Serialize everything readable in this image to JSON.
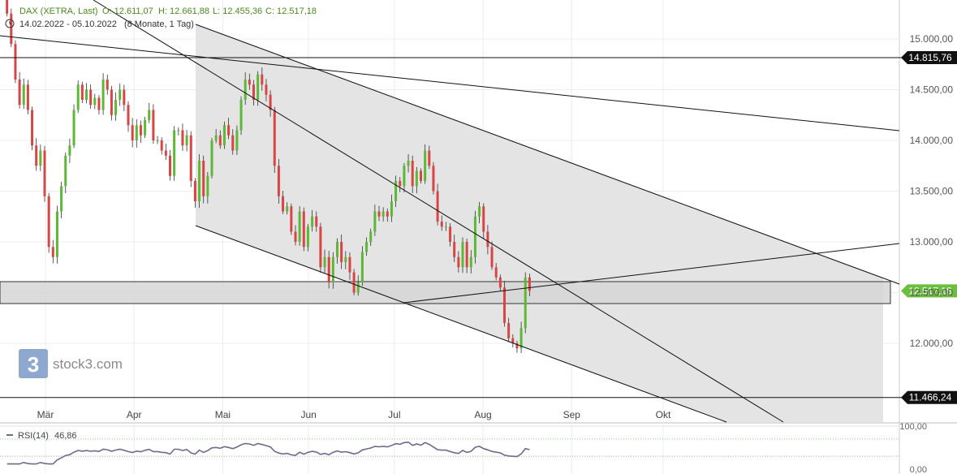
{
  "header": {
    "instrument": "DAX (XETRA, Last)",
    "open": "O: 12.611,07",
    "high": "H: 12.661,88",
    "low": "L: 12.455,36",
    "close": "C: 12.517,18",
    "range": "14.02.2022 - 05.10.2022",
    "period": "(8 Monate, 1 Tag)"
  },
  "brand": {
    "name": "stock3.com",
    "logo_glyph": "3"
  },
  "colors": {
    "up": "#5cb836",
    "down": "#d94545",
    "rsi_line": "#6f6a8c",
    "accent_price": "#6abf3c"
  },
  "chart_data": {
    "type": "candlestick",
    "y_axis": {
      "ticks": [
        12000,
        12500,
        13000,
        13500,
        14000,
        14500,
        15000
      ],
      "tick_labels": [
        "12.000,00",
        "12.500,00",
        "13.000,00",
        "13.500,00",
        "14.000,00",
        "14.500,00",
        "15.000,00"
      ],
      "range": [
        11400,
        15400
      ]
    },
    "x_axis": {
      "months": [
        "Mär",
        "Apr",
        "Mai",
        "Jun",
        "Jul",
        "Aug",
        "Sep",
        "Okt"
      ],
      "month_dates": [
        "2022-03-01",
        "2022-04-01",
        "2022-05-02",
        "2022-06-01",
        "2022-07-01",
        "2022-08-01",
        "2022-09-01",
        "2022-10-03"
      ]
    },
    "levels": [
      {
        "value": 14815.76,
        "label": "14.815,76"
      },
      {
        "value": 11466.24,
        "label": "11.466,24"
      }
    ],
    "last_price": {
      "value": 12517.18,
      "label": "12.517,18"
    },
    "closes": [
      15450,
      15250,
      14950,
      14600,
      14350,
      14550,
      14300,
      13950,
      13750,
      13900,
      13450,
      12950,
      12850,
      13300,
      13550,
      13850,
      13950,
      14300,
      14550,
      14400,
      14500,
      14350,
      14420,
      14300,
      14600,
      14500,
      14250,
      14400,
      14500,
      14350,
      14150,
      14000,
      14150,
      14050,
      14200,
      14300,
      14000,
      14000,
      13900,
      13850,
      13650,
      14100,
      14100,
      13950,
      14050,
      13600,
      13400,
      13800,
      13450,
      13650,
      14000,
      14050,
      13950,
      14150,
      14050,
      13900,
      14100,
      14400,
      14600,
      14550,
      14400,
      14650,
      14550,
      14450,
      14300,
      13750,
      13450,
      13300,
      13350,
      13100,
      13000,
      13300,
      12950,
      13150,
      13250,
      13150,
      12750,
      12850,
      12600,
      12850,
      13000,
      12800,
      12850,
      12700,
      12500,
      12600,
      12900,
      13000,
      13100,
      13300,
      13250,
      13300,
      13250,
      13400,
      13600,
      13550,
      13750,
      13800,
      13550,
      13700,
      13600,
      13900,
      13750,
      13500,
      13200,
      13150,
      13150,
      13000,
      12850,
      12750,
      13000,
      12750,
      12850,
      13250,
      13350,
      13100,
      12950,
      12750,
      12650,
      12550,
      12200,
      12050,
      12000,
      11950,
      12150,
      12650,
      12517
    ],
    "rsi": {
      "label": "RSI(14)",
      "value": "46,86",
      "period": 14,
      "overbought": 70,
      "oversold": 30,
      "tick_labels": [
        "100,00",
        "0,00"
      ]
    }
  }
}
